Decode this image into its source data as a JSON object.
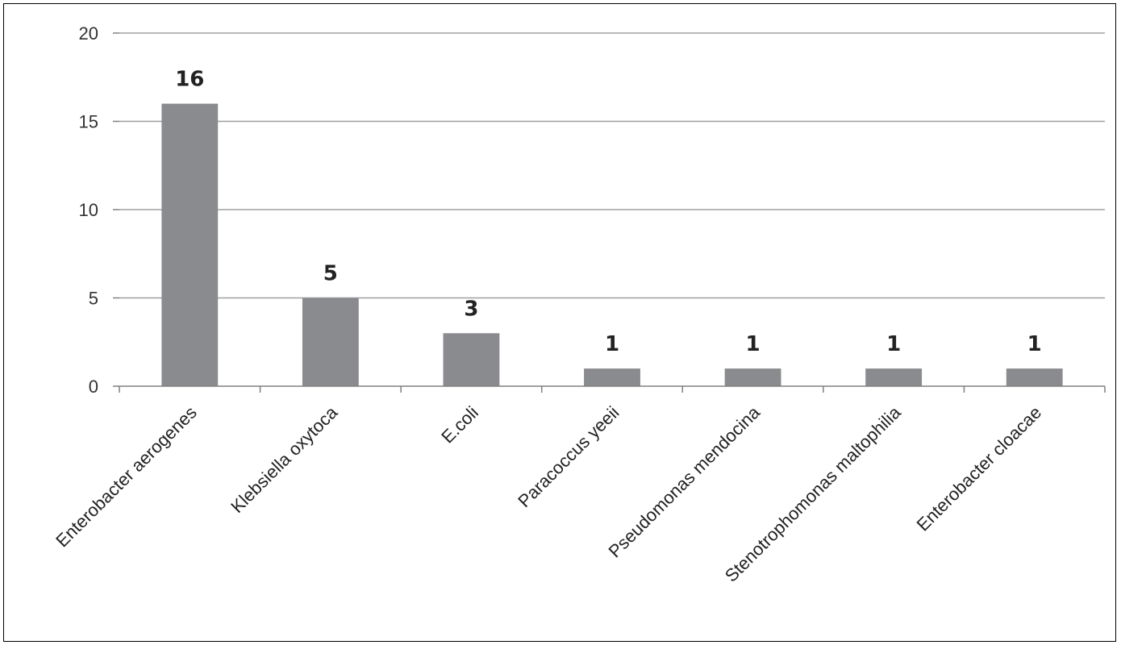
{
  "chart_data": {
    "type": "bar",
    "categories": [
      "Enterobacter aerogenes",
      "Klebsiella oxytoca",
      "E.coli",
      "Paracoccus yeeii",
      "Pseudomonas mendocina",
      "Stenotrophomonas maltophilia",
      "Enterobacter cloacae"
    ],
    "values": [
      16,
      5,
      3,
      1,
      1,
      1,
      1
    ],
    "data_labels": [
      "16",
      "5",
      "3",
      "1",
      "1",
      "1",
      "1"
    ],
    "yticks": [
      "0",
      "5",
      "10",
      "15",
      "20"
    ],
    "ylim": [
      0,
      20
    ],
    "title": "",
    "xlabel": "",
    "ylabel": "",
    "grid": true,
    "legend": "none",
    "colors": {
      "bar": "#8a8b8e",
      "grid": "#a0a0a0",
      "axis": "#808080"
    }
  }
}
